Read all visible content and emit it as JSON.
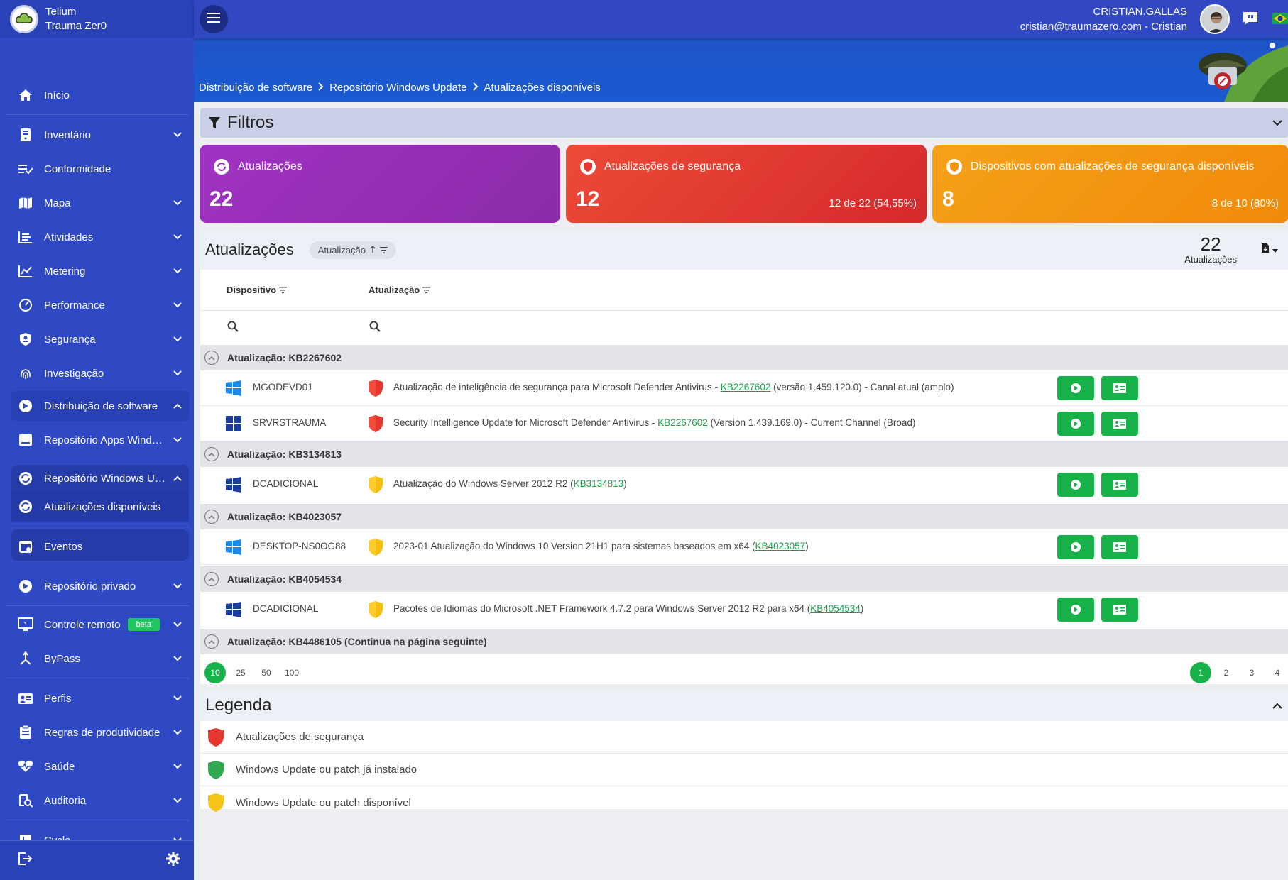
{
  "app": {
    "org": "Telium",
    "product": "Trauma Zer0"
  },
  "user": {
    "name": "CRISTIAN.GALLAS",
    "email_line": "cristian@traumazero.com - Cristian"
  },
  "breadcrumb": [
    "Distribuição de software",
    "Repositório Windows Update",
    "Atualizações disponíveis"
  ],
  "sidebar": {
    "items": [
      {
        "label": "Início",
        "icon": "home-icon"
      },
      {
        "label": "Inventário",
        "icon": "inventory-icon"
      },
      {
        "label": "Conformidade",
        "icon": "compliance-icon"
      },
      {
        "label": "Mapa",
        "icon": "map-icon"
      },
      {
        "label": "Atividades",
        "icon": "activities-icon"
      },
      {
        "label": "Metering",
        "icon": "metering-icon"
      },
      {
        "label": "Performance",
        "icon": "performance-icon"
      },
      {
        "label": "Segurança",
        "icon": "security-icon"
      },
      {
        "label": "Investigação",
        "icon": "fingerprint-icon"
      },
      {
        "label": "Distribuição de software",
        "icon": "software-distribution-icon"
      },
      {
        "label": "Repositório Apps Windows",
        "icon": "repository-icon"
      },
      {
        "label": "Repositório Windows Update",
        "icon": "windows-update-icon"
      },
      {
        "label": "Atualizações disponíveis",
        "icon": "updates-icon"
      },
      {
        "label": "Eventos",
        "icon": "events-icon"
      },
      {
        "label": "Repositório privado",
        "icon": "private-repo-icon"
      },
      {
        "label": "Controle remoto",
        "icon": "remote-control-icon",
        "badge": "beta"
      },
      {
        "label": "ByPass",
        "icon": "bypass-icon"
      },
      {
        "label": "Perfis",
        "icon": "profiles-icon"
      },
      {
        "label": "Regras de produtividade",
        "icon": "rules-icon"
      },
      {
        "label": "Saúde",
        "icon": "health-icon"
      },
      {
        "label": "Auditoria",
        "icon": "audit-icon"
      },
      {
        "label": "Cycle",
        "icon": "cycle-icon"
      }
    ]
  },
  "filters": {
    "label": "Filtros"
  },
  "cards": [
    {
      "title": "Atualizações",
      "value": "22",
      "sub": "",
      "color": "#9a2fb8"
    },
    {
      "title": "Atualizações de segurança",
      "value": "12",
      "sub": "12 de 22 (54,55%)",
      "color": "#e5372f"
    },
    {
      "title": "Dispositivos com atualizações de segurança disponíveis",
      "value": "8",
      "sub": "8 de 10 (80%)",
      "color": "#f59310"
    }
  ],
  "table": {
    "title": "Atualizações",
    "sort_chip": "Atualização",
    "count_value": "22",
    "count_label": "Atualizações",
    "columns": [
      "Dispositivo",
      "Atualização"
    ],
    "groups": [
      {
        "label": "Atualização: KB2267602",
        "rows": [
          {
            "device": "MGODEVD01",
            "shield": "red",
            "pre": "Atualização de inteligência de segurança para Microsoft Defender Antivirus - ",
            "kb": "KB2267602",
            "post": " (versão 1.459.120.0) - Canal atual (amplo)"
          },
          {
            "device": "SRVRSTRAUMA",
            "shield": "red",
            "pre": "Security Intelligence Update for Microsoft Defender Antivirus - ",
            "kb": "KB2267602",
            "post": " (Version 1.439.169.0) - Current Channel (Broad)"
          }
        ]
      },
      {
        "label": "Atualização: KB3134813",
        "rows": [
          {
            "device": "DCADICIONAL",
            "shield": "yellow",
            "pre": "Atualização do Windows Server 2012 R2 (",
            "kb": "KB3134813",
            "post": ")"
          }
        ]
      },
      {
        "label": "Atualização: KB4023057",
        "rows": [
          {
            "device": "DESKTOP-NS0OG88",
            "shield": "yellow",
            "pre": "2023-01 Atualização do Windows 10 Version 21H1 para sistemas baseados em x64 (",
            "kb": "KB4023057",
            "post": ")"
          }
        ]
      },
      {
        "label": "Atualização: KB4054534",
        "rows": [
          {
            "device": "DCADICIONAL",
            "shield": "yellow",
            "pre": "Pacotes de Idiomas do Microsoft .NET Framework 4.7.2 para Windows Server 2012 R2 para x64 (",
            "kb": "KB4054534",
            "post": ")"
          }
        ]
      },
      {
        "label": "Atualização: KB4486105 (Continua na página seguinte)",
        "rows": []
      }
    ],
    "page_sizes": [
      "10",
      "25",
      "50",
      "100"
    ],
    "selected_page_size": "10",
    "pages": [
      "1",
      "2",
      "3",
      "4"
    ],
    "current_page": "1"
  },
  "legend": {
    "title": "Legenda",
    "items": [
      {
        "label": "Atualizações de segurança",
        "color": "#e5372f"
      },
      {
        "label": "Windows Update ou patch já instalado",
        "color": "#2fa84f"
      },
      {
        "label": "Windows Update ou patch disponível",
        "color": "#f5c518"
      }
    ]
  },
  "colors": {
    "sidebar": "#2f49c5",
    "accent_green": "#17b24a"
  }
}
